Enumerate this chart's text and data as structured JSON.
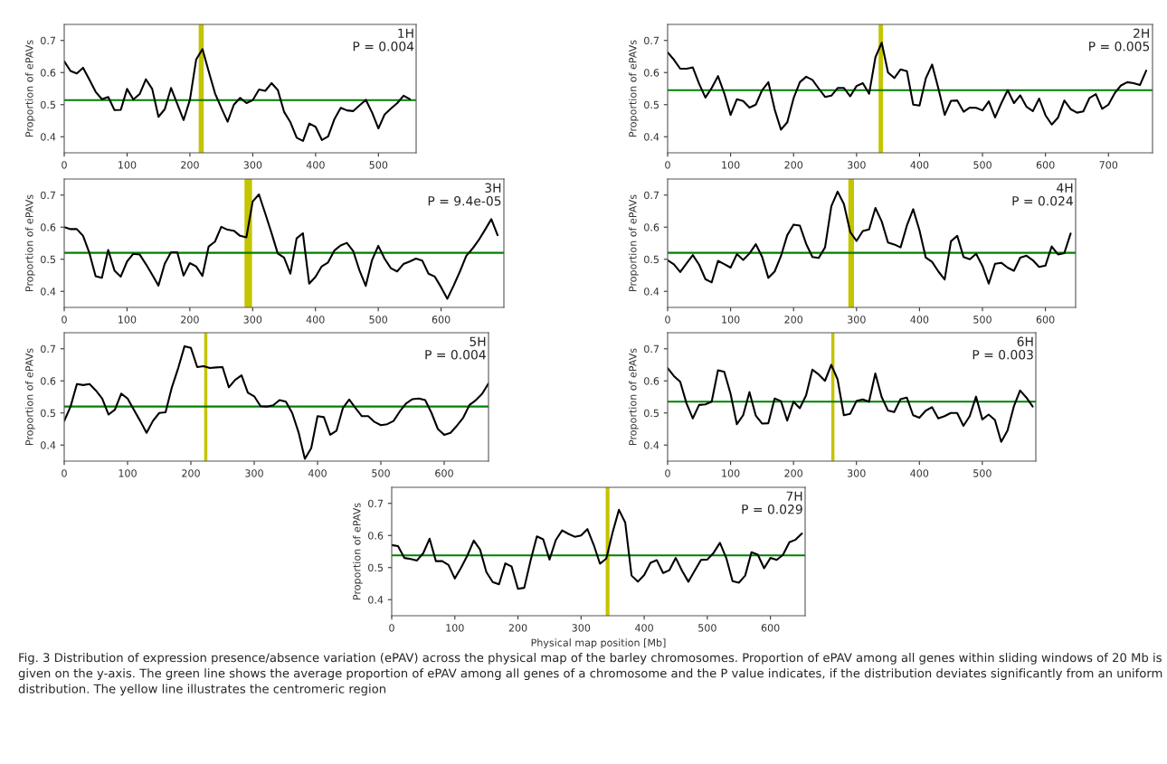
{
  "chart_data": [
    {
      "type": "line",
      "title": "1H\nP = 0.004",
      "ylabel": "Proportion of ePAVs",
      "xlim": [
        0,
        560
      ],
      "xticks": [
        0,
        100,
        200,
        300,
        400,
        500
      ],
      "ylim": [
        0.35,
        0.75
      ],
      "yticks": [
        0.4,
        0.5,
        0.6,
        0.7
      ],
      "ref_lines": [
        {
          "axis": "y",
          "value": 0.514,
          "color": "#008000"
        }
      ],
      "bands": [
        {
          "axis": "x",
          "from": 214,
          "to": 222,
          "color": "#c4c400"
        }
      ],
      "series": [
        {
          "color": "#000000",
          "x": [
            0,
            10,
            20,
            30,
            40,
            50,
            60,
            70,
            80,
            90,
            100,
            110,
            120,
            130,
            140,
            150,
            160,
            170,
            180,
            190,
            200,
            210,
            220,
            230,
            240,
            250,
            260,
            270,
            280,
            290,
            300,
            310,
            320,
            330,
            340,
            350,
            360,
            370,
            380,
            390,
            400,
            410,
            420,
            430,
            440,
            450,
            460,
            470,
            480,
            490,
            500,
            510,
            520,
            530,
            540,
            550
          ],
          "values": [
            0.635,
            0.605,
            0.597,
            0.615,
            0.578,
            0.54,
            0.517,
            0.524,
            0.483,
            0.484,
            0.549,
            0.516,
            0.533,
            0.579,
            0.549,
            0.462,
            0.486,
            0.552,
            0.502,
            0.452,
            0.515,
            0.641,
            0.673,
            0.603,
            0.535,
            0.49,
            0.447,
            0.5,
            0.521,
            0.505,
            0.514,
            0.547,
            0.543,
            0.567,
            0.545,
            0.477,
            0.445,
            0.397,
            0.387,
            0.441,
            0.431,
            0.39,
            0.401,
            0.455,
            0.49,
            0.482,
            0.48,
            0.498,
            0.515,
            0.475,
            0.426,
            0.47,
            0.488,
            0.505,
            0.528,
            0.517
          ]
        }
      ]
    },
    {
      "type": "line",
      "title": "2H\nP = 0.005",
      "ylabel": "Proportion of ePAVs",
      "xlim": [
        0,
        770
      ],
      "xticks": [
        0,
        100,
        200,
        300,
        400,
        500,
        600,
        700
      ],
      "ylim": [
        0.35,
        0.75
      ],
      "yticks": [
        0.4,
        0.5,
        0.6,
        0.7
      ],
      "ref_lines": [
        {
          "axis": "y",
          "value": 0.545,
          "color": "#008000"
        }
      ],
      "bands": [
        {
          "axis": "x",
          "from": 335,
          "to": 342,
          "color": "#c4c400"
        }
      ],
      "series": [
        {
          "color": "#000000",
          "x": [
            0,
            10,
            20,
            30,
            40,
            50,
            60,
            70,
            80,
            90,
            100,
            110,
            120,
            130,
            140,
            150,
            160,
            170,
            180,
            190,
            200,
            210,
            220,
            230,
            240,
            250,
            260,
            270,
            280,
            290,
            300,
            310,
            320,
            330,
            340,
            350,
            360,
            370,
            380,
            390,
            400,
            410,
            420,
            430,
            440,
            450,
            460,
            470,
            480,
            490,
            500,
            510,
            520,
            530,
            540,
            550,
            560,
            570,
            580,
            590,
            600,
            610,
            620,
            630,
            640,
            650,
            660,
            670,
            680,
            690,
            700,
            710,
            720,
            730,
            740,
            750,
            760
          ],
          "values": [
            0.663,
            0.64,
            0.612,
            0.612,
            0.616,
            0.565,
            0.522,
            0.552,
            0.589,
            0.535,
            0.468,
            0.517,
            0.511,
            0.491,
            0.5,
            0.545,
            0.57,
            0.485,
            0.422,
            0.445,
            0.52,
            0.57,
            0.587,
            0.577,
            0.55,
            0.524,
            0.528,
            0.552,
            0.552,
            0.526,
            0.558,
            0.567,
            0.534,
            0.648,
            0.693,
            0.6,
            0.583,
            0.61,
            0.604,
            0.5,
            0.497,
            0.582,
            0.625,
            0.55,
            0.468,
            0.512,
            0.513,
            0.478,
            0.491,
            0.49,
            0.482,
            0.51,
            0.46,
            0.505,
            0.545,
            0.505,
            0.529,
            0.493,
            0.48,
            0.519,
            0.467,
            0.438,
            0.46,
            0.513,
            0.486,
            0.475,
            0.479,
            0.521,
            0.533,
            0.487,
            0.5,
            0.536,
            0.56,
            0.57,
            0.567,
            0.561,
            0.606
          ]
        }
      ]
    },
    {
      "type": "line",
      "title": "3H\nP = 9.4e-05",
      "ylabel": "Proportion of ePAVs",
      "xlim": [
        0,
        700
      ],
      "xticks": [
        0,
        100,
        200,
        300,
        400,
        500,
        600
      ],
      "ylim": [
        0.35,
        0.75
      ],
      "yticks": [
        0.4,
        0.5,
        0.6,
        0.7
      ],
      "ref_lines": [
        {
          "axis": "y",
          "value": 0.52,
          "color": "#008000"
        }
      ],
      "bands": [
        {
          "axis": "x",
          "from": 287,
          "to": 299,
          "color": "#c4c400"
        }
      ],
      "series": [
        {
          "color": "#000000",
          "x": [
            0,
            10,
            20,
            30,
            40,
            50,
            60,
            70,
            80,
            90,
            100,
            110,
            120,
            130,
            140,
            150,
            160,
            170,
            180,
            190,
            200,
            210,
            220,
            230,
            240,
            250,
            260,
            270,
            280,
            290,
            300,
            310,
            320,
            330,
            340,
            350,
            360,
            370,
            380,
            390,
            400,
            410,
            420,
            430,
            440,
            450,
            460,
            470,
            480,
            490,
            500,
            510,
            520,
            530,
            540,
            550,
            560,
            570,
            580,
            590,
            600,
            610,
            620,
            630,
            640,
            650,
            660,
            670,
            680,
            690
          ],
          "values": [
            0.6,
            0.594,
            0.594,
            0.573,
            0.52,
            0.447,
            0.442,
            0.529,
            0.465,
            0.446,
            0.493,
            0.517,
            0.515,
            0.485,
            0.452,
            0.418,
            0.486,
            0.522,
            0.522,
            0.449,
            0.488,
            0.478,
            0.448,
            0.54,
            0.555,
            0.601,
            0.592,
            0.589,
            0.573,
            0.568,
            0.68,
            0.702,
            0.643,
            0.582,
            0.518,
            0.505,
            0.455,
            0.565,
            0.581,
            0.424,
            0.445,
            0.478,
            0.49,
            0.527,
            0.543,
            0.551,
            0.526,
            0.466,
            0.417,
            0.497,
            0.542,
            0.502,
            0.472,
            0.462,
            0.485,
            0.493,
            0.502,
            0.496,
            0.455,
            0.446,
            0.413,
            0.377,
            0.418,
            0.462,
            0.51,
            0.533,
            0.56,
            0.592,
            0.625,
            0.575
          ]
        }
      ]
    },
    {
      "type": "line",
      "title": "4H\nP = 0.024",
      "ylabel": "Proportion of ePAVs",
      "xlim": [
        0,
        648
      ],
      "xticks": [
        0,
        100,
        200,
        300,
        400,
        500,
        600
      ],
      "ylim": [
        0.35,
        0.75
      ],
      "yticks": [
        0.4,
        0.5,
        0.6,
        0.7
      ],
      "ref_lines": [
        {
          "axis": "y",
          "value": 0.52,
          "color": "#008000"
        }
      ],
      "bands": [
        {
          "axis": "x",
          "from": 287,
          "to": 296,
          "color": "#c4c400"
        }
      ],
      "series": [
        {
          "color": "#000000",
          "x": [
            0,
            10,
            20,
            30,
            40,
            50,
            60,
            70,
            80,
            90,
            100,
            110,
            120,
            130,
            140,
            150,
            160,
            170,
            180,
            190,
            200,
            210,
            220,
            230,
            240,
            250,
            260,
            270,
            280,
            290,
            300,
            310,
            320,
            330,
            340,
            350,
            360,
            370,
            380,
            390,
            400,
            410,
            420,
            430,
            440,
            450,
            460,
            470,
            480,
            490,
            500,
            510,
            520,
            530,
            540,
            550,
            560,
            570,
            580,
            590,
            600,
            610,
            620,
            630,
            640
          ],
          "values": [
            0.497,
            0.484,
            0.46,
            0.487,
            0.513,
            0.483,
            0.438,
            0.428,
            0.495,
            0.485,
            0.474,
            0.516,
            0.498,
            0.518,
            0.547,
            0.508,
            0.442,
            0.462,
            0.51,
            0.575,
            0.608,
            0.605,
            0.548,
            0.507,
            0.504,
            0.537,
            0.665,
            0.711,
            0.672,
            0.585,
            0.557,
            0.588,
            0.593,
            0.66,
            0.618,
            0.552,
            0.546,
            0.537,
            0.605,
            0.656,
            0.59,
            0.505,
            0.492,
            0.462,
            0.437,
            0.556,
            0.573,
            0.507,
            0.5,
            0.517,
            0.479,
            0.424,
            0.486,
            0.489,
            0.474,
            0.464,
            0.505,
            0.511,
            0.497,
            0.476,
            0.48,
            0.54,
            0.515,
            0.519,
            0.58
          ]
        }
      ]
    },
    {
      "type": "line",
      "title": "5H\nP = 0.004",
      "ylabel": "Proportion of ePAVs",
      "xlim": [
        0,
        670
      ],
      "xticks": [
        0,
        100,
        200,
        300,
        400,
        500,
        600
      ],
      "ylim": [
        0.35,
        0.75
      ],
      "yticks": [
        0.4,
        0.5,
        0.6,
        0.7
      ],
      "ref_lines": [
        {
          "axis": "y",
          "value": 0.52,
          "color": "#008000"
        }
      ],
      "bands": [
        {
          "axis": "x",
          "from": 221,
          "to": 226,
          "color": "#c4c400"
        }
      ],
      "series": [
        {
          "color": "#000000",
          "x": [
            0,
            10,
            20,
            30,
            40,
            50,
            60,
            70,
            80,
            90,
            100,
            110,
            120,
            130,
            140,
            150,
            160,
            170,
            180,
            190,
            200,
            210,
            220,
            230,
            240,
            250,
            260,
            270,
            280,
            290,
            300,
            310,
            320,
            330,
            340,
            350,
            360,
            370,
            380,
            390,
            400,
            410,
            420,
            430,
            440,
            450,
            460,
            470,
            480,
            490,
            500,
            510,
            520,
            530,
            540,
            550,
            560,
            570,
            580,
            590,
            600,
            610,
            620,
            630,
            640,
            650,
            660,
            670
          ],
          "values": [
            0.475,
            0.52,
            0.59,
            0.587,
            0.59,
            0.57,
            0.545,
            0.495,
            0.51,
            0.56,
            0.545,
            0.51,
            0.475,
            0.438,
            0.475,
            0.5,
            0.502,
            0.58,
            0.64,
            0.708,
            0.703,
            0.643,
            0.646,
            0.64,
            0.642,
            0.643,
            0.58,
            0.603,
            0.617,
            0.563,
            0.552,
            0.521,
            0.52,
            0.524,
            0.54,
            0.535,
            0.5,
            0.44,
            0.357,
            0.39,
            0.49,
            0.487,
            0.432,
            0.445,
            0.515,
            0.542,
            0.515,
            0.49,
            0.49,
            0.472,
            0.462,
            0.465,
            0.475,
            0.505,
            0.53,
            0.543,
            0.545,
            0.54,
            0.5,
            0.45,
            0.432,
            0.438,
            0.46,
            0.485,
            0.525,
            0.54,
            0.56,
            0.592
          ]
        }
      ]
    },
    {
      "type": "line",
      "title": "6H\nP = 0.003",
      "ylabel": "Proportion of ePAVs",
      "xlim": [
        0,
        585
      ],
      "xticks": [
        0,
        100,
        200,
        300,
        400,
        500
      ],
      "ylim": [
        0.35,
        0.75
      ],
      "yticks": [
        0.4,
        0.5,
        0.6,
        0.7
      ],
      "ref_lines": [
        {
          "axis": "y",
          "value": 0.535,
          "color": "#008000"
        }
      ],
      "bands": [
        {
          "axis": "x",
          "from": 260,
          "to": 265,
          "color": "#c4c400"
        }
      ],
      "series": [
        {
          "color": "#000000",
          "x": [
            0,
            10,
            20,
            30,
            40,
            50,
            60,
            70,
            80,
            90,
            100,
            110,
            120,
            130,
            140,
            150,
            160,
            170,
            180,
            190,
            200,
            210,
            220,
            230,
            240,
            250,
            260,
            270,
            280,
            290,
            300,
            310,
            320,
            330,
            340,
            350,
            360,
            370,
            380,
            390,
            400,
            410,
            420,
            430,
            440,
            450,
            460,
            470,
            480,
            490,
            500,
            510,
            520,
            530,
            540,
            550,
            560,
            570,
            580
          ],
          "values": [
            0.64,
            0.615,
            0.597,
            0.53,
            0.483,
            0.525,
            0.527,
            0.535,
            0.633,
            0.628,
            0.56,
            0.465,
            0.493,
            0.565,
            0.492,
            0.467,
            0.468,
            0.545,
            0.537,
            0.476,
            0.535,
            0.515,
            0.555,
            0.635,
            0.62,
            0.6,
            0.65,
            0.605,
            0.493,
            0.497,
            0.537,
            0.542,
            0.535,
            0.623,
            0.55,
            0.508,
            0.503,
            0.543,
            0.548,
            0.493,
            0.485,
            0.507,
            0.518,
            0.483,
            0.49,
            0.5,
            0.5,
            0.46,
            0.49,
            0.551,
            0.48,
            0.495,
            0.478,
            0.41,
            0.445,
            0.52,
            0.57,
            0.548,
            0.52
          ]
        }
      ]
    },
    {
      "type": "line",
      "title": "7H\nP = 0.029",
      "xlabel": "Physical map position [Mb]",
      "ylabel": "Proportion of ePAVs",
      "xlim": [
        0,
        655
      ],
      "xticks": [
        0,
        100,
        200,
        300,
        400,
        500,
        600
      ],
      "ylim": [
        0.35,
        0.75
      ],
      "yticks": [
        0.4,
        0.5,
        0.6,
        0.7
      ],
      "ref_lines": [
        {
          "axis": "y",
          "value": 0.538,
          "color": "#008000"
        }
      ],
      "bands": [
        {
          "axis": "x",
          "from": 339,
          "to": 345,
          "color": "#c4c400"
        }
      ],
      "annotations": [
        "Fig. 3 Distribution of expression presence/absence variation (ePAV) across the physical map of the barley chromosomes. Proportion of ePAV among all genes within sliding windows of 20 Mb is given on the y-axis. The green line shows the average proportion of ePAV among all genes of a chromosome and the P value indicates, if the distribution deviates significantly from an uniform distribution. The yellow line illustrates the centromeric region"
      ],
      "series": [
        {
          "color": "#000000",
          "x": [
            0,
            10,
            20,
            30,
            40,
            50,
            60,
            70,
            80,
            90,
            100,
            110,
            120,
            130,
            140,
            150,
            160,
            170,
            180,
            190,
            200,
            210,
            220,
            230,
            240,
            250,
            260,
            270,
            280,
            290,
            300,
            310,
            320,
            330,
            340,
            350,
            360,
            370,
            380,
            390,
            400,
            410,
            420,
            430,
            440,
            450,
            460,
            470,
            480,
            490,
            500,
            510,
            520,
            530,
            540,
            550,
            560,
            570,
            580,
            590,
            600,
            610,
            620,
            630,
            640,
            650
          ],
          "values": [
            0.57,
            0.567,
            0.53,
            0.527,
            0.522,
            0.545,
            0.59,
            0.52,
            0.52,
            0.508,
            0.466,
            0.5,
            0.538,
            0.584,
            0.556,
            0.486,
            0.455,
            0.448,
            0.513,
            0.503,
            0.434,
            0.437,
            0.522,
            0.597,
            0.588,
            0.525,
            0.586,
            0.616,
            0.605,
            0.596,
            0.6,
            0.62,
            0.571,
            0.512,
            0.528,
            0.61,
            0.68,
            0.64,
            0.475,
            0.456,
            0.477,
            0.515,
            0.523,
            0.483,
            0.492,
            0.53,
            0.49,
            0.456,
            0.49,
            0.524,
            0.525,
            0.546,
            0.577,
            0.53,
            0.458,
            0.453,
            0.475,
            0.548,
            0.54,
            0.498,
            0.53,
            0.524,
            0.54,
            0.579,
            0.587,
            0.606
          ]
        }
      ]
    }
  ]
}
